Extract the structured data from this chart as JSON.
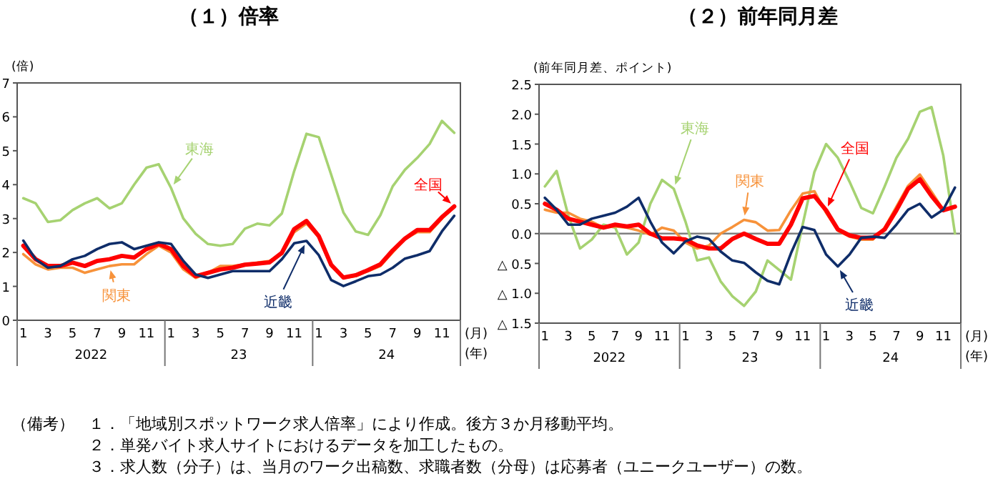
{
  "chart_data": [
    {
      "type": "line",
      "title": "（１）倍率",
      "ylabel": "(倍)",
      "categories": [
        "1",
        null,
        "3",
        null,
        "5",
        null,
        "7",
        null,
        "9",
        null,
        "11",
        null,
        "1",
        null,
        "3",
        null,
        "5",
        null,
        "7",
        null,
        "9",
        null,
        "11",
        null,
        "1",
        null,
        "3",
        null,
        "5",
        null,
        "7",
        null,
        "9",
        null,
        "11",
        null
      ],
      "ylim": [
        0,
        7
      ],
      "yticks": [
        0,
        1,
        2,
        3,
        4,
        5,
        6,
        7
      ],
      "series": [
        {
          "name": "全国",
          "color": "#ff0000",
          "values": [
            2.2,
            1.8,
            1.6,
            1.6,
            1.7,
            1.6,
            1.75,
            1.8,
            1.9,
            1.85,
            2.1,
            2.25,
            2.1,
            1.6,
            1.3,
            1.4,
            1.5,
            1.55,
            1.64,
            1.67,
            1.71,
            1.99,
            2.69,
            2.93,
            2.48,
            1.64,
            1.26,
            1.33,
            1.48,
            1.65,
            2.06,
            2.41,
            2.66,
            2.66,
            3.04,
            3.36
          ]
        },
        {
          "name": "関東",
          "color": "#f7923a",
          "values": [
            1.95,
            1.65,
            1.5,
            1.55,
            1.55,
            1.4,
            1.5,
            1.6,
            1.65,
            1.65,
            1.95,
            2.2,
            2.0,
            1.5,
            1.25,
            1.4,
            1.6,
            1.6,
            1.65,
            1.7,
            1.75,
            1.95,
            2.6,
            2.85,
            2.45,
            1.6,
            1.25,
            1.3,
            1.45,
            1.6,
            2.0,
            2.4,
            2.6,
            2.6,
            3.0,
            3.35
          ]
        },
        {
          "name": "近畿",
          "color": "#0f2d69",
          "values": [
            2.35,
            1.8,
            1.55,
            1.6,
            1.8,
            1.9,
            2.1,
            2.25,
            2.3,
            2.1,
            2.2,
            2.3,
            2.25,
            1.75,
            1.35,
            1.25,
            1.35,
            1.45,
            1.45,
            1.45,
            1.45,
            1.8,
            2.27,
            2.34,
            1.92,
            1.19,
            1.01,
            1.15,
            1.3,
            1.35,
            1.55,
            1.82,
            1.92,
            2.04,
            2.62,
            3.08
          ]
        },
        {
          "name": "東海",
          "color": "#a6d271",
          "values": [
            3.6,
            3.45,
            2.9,
            2.95,
            3.25,
            3.45,
            3.6,
            3.3,
            3.45,
            4.0,
            4.5,
            4.6,
            3.9,
            3.0,
            2.55,
            2.25,
            2.2,
            2.25,
            2.7,
            2.85,
            2.8,
            3.15,
            4.4,
            5.5,
            5.4,
            4.3,
            3.18,
            2.62,
            2.52,
            3.1,
            3.95,
            4.44,
            4.79,
            5.2,
            5.88,
            5.53
          ]
        }
      ],
      "annotations": [
        "2022",
        "23",
        "24",
        "(月)",
        "(年)"
      ]
    },
    {
      "type": "line",
      "title": "（２）前年同月差",
      "ylabel": "(前年同月差、ポイント)",
      "categories": [
        "1",
        null,
        "3",
        null,
        "5",
        null,
        "7",
        null,
        "9",
        null,
        "11",
        null,
        "1",
        null,
        "3",
        null,
        "5",
        null,
        "7",
        null,
        "9",
        null,
        "11",
        null,
        "1",
        null,
        "3",
        null,
        "5",
        null,
        "7",
        null,
        "9",
        null,
        "11",
        null
      ],
      "ylim": [
        -1.5,
        2.5
      ],
      "yticks": [
        2.5,
        {
          "value": 2,
          "label": "2.0"
        },
        1.5,
        {
          "value": 1,
          "label": "1.0"
        },
        0.5,
        {
          "value": 0,
          "label": "0.0"
        },
        {
          "value": -0.5,
          "label": "△ 0.5"
        },
        {
          "value": -1,
          "label": "△ 1.0"
        },
        {
          "value": -1.5,
          "label": "△ 1.5"
        }
      ],
      "ref_lines": [
        {
          "axis": "y",
          "value": 0,
          "color": "#808080"
        }
      ],
      "series": [
        {
          "name": "全国",
          "color": "#ff0000",
          "values": [
            0.5,
            0.4,
            0.25,
            0.2,
            0.15,
            0.1,
            0.15,
            0.12,
            0.15,
            0.0,
            -0.08,
            -0.08,
            -0.1,
            -0.2,
            -0.25,
            -0.25,
            -0.09,
            0.0,
            -0.09,
            -0.17,
            -0.17,
            0.15,
            0.59,
            0.63,
            0.39,
            0.07,
            -0.03,
            -0.07,
            -0.07,
            0.07,
            0.39,
            0.75,
            0.91,
            0.63,
            0.39,
            0.45
          ]
        },
        {
          "name": "関東",
          "color": "#f7923a",
          "values": [
            0.4,
            0.35,
            0.35,
            0.25,
            0.2,
            0.1,
            0.12,
            0.1,
            0.05,
            -0.02,
            0.1,
            0.05,
            -0.15,
            -0.25,
            -0.2,
            0.0,
            0.11,
            0.23,
            0.19,
            0.05,
            0.06,
            0.39,
            0.67,
            0.71,
            0.35,
            0.05,
            -0.05,
            -0.1,
            -0.1,
            0.1,
            0.45,
            0.8,
            0.99,
            0.7,
            0.4,
            0.45
          ]
        },
        {
          "name": "近畿",
          "color": "#0f2d69",
          "values": [
            0.6,
            0.4,
            0.15,
            0.15,
            0.25,
            0.3,
            0.35,
            0.45,
            0.6,
            0.2,
            -0.15,
            -0.33,
            -0.13,
            -0.05,
            -0.09,
            -0.3,
            -0.45,
            -0.49,
            -0.65,
            -0.79,
            -0.85,
            -0.33,
            0.11,
            0.06,
            -0.35,
            -0.55,
            -0.35,
            -0.07,
            -0.05,
            -0.07,
            0.15,
            0.4,
            0.5,
            0.27,
            0.4,
            0.77
          ]
        },
        {
          "name": "東海",
          "color": "#a6d271",
          "values": [
            0.79,
            1.05,
            0.3,
            -0.25,
            -0.1,
            0.15,
            0.1,
            -0.35,
            -0.15,
            0.5,
            0.9,
            0.75,
            0.2,
            -0.45,
            -0.4,
            -0.8,
            -1.05,
            -1.21,
            -0.97,
            -0.45,
            -0.61,
            -0.77,
            0.15,
            1.03,
            1.5,
            1.27,
            0.87,
            0.43,
            0.34,
            0.79,
            1.27,
            1.59,
            2.04,
            2.12,
            1.31,
            0.0
          ]
        }
      ],
      "annotations": [
        "2022",
        "23",
        "24",
        "(月)",
        "(年)",
        "（備考）",
        "１．「地域別スポットワーク求人倍率」により作成。後方３か月移動平均。",
        "２．単発バイト求人サイトにおけるデータを加工したもの。",
        "３．求人数（分子）は、当月のワーク出稿数、求職者数（分母）は応募者（ユニークユーザー）の数。"
      ]
    }
  ]
}
